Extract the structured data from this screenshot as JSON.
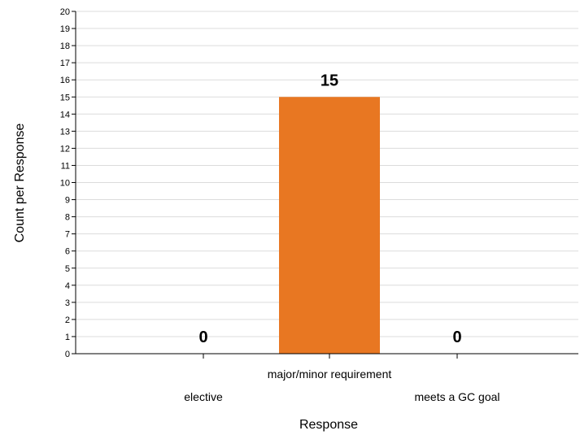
{
  "chart_data": {
    "type": "bar",
    "categories": [
      "elective",
      "major/minor requirement",
      "meets a GC goal"
    ],
    "values": [
      0,
      15,
      0
    ],
    "data_labels": [
      "0",
      "15",
      "0"
    ],
    "xlabel": "Response",
    "ylabel": "Count per Response",
    "ylim": [
      0,
      20
    ],
    "y_ticks": [
      "0",
      "1",
      "2",
      "3",
      "4",
      "5",
      "6",
      "7",
      "8",
      "9",
      "10",
      "11",
      "12",
      "13",
      "14",
      "15",
      "16",
      "17",
      "18",
      "19",
      "20"
    ],
    "grid": true,
    "legend": "none",
    "bar_color": "#e87722",
    "grid_color": "#dcdcdc"
  }
}
